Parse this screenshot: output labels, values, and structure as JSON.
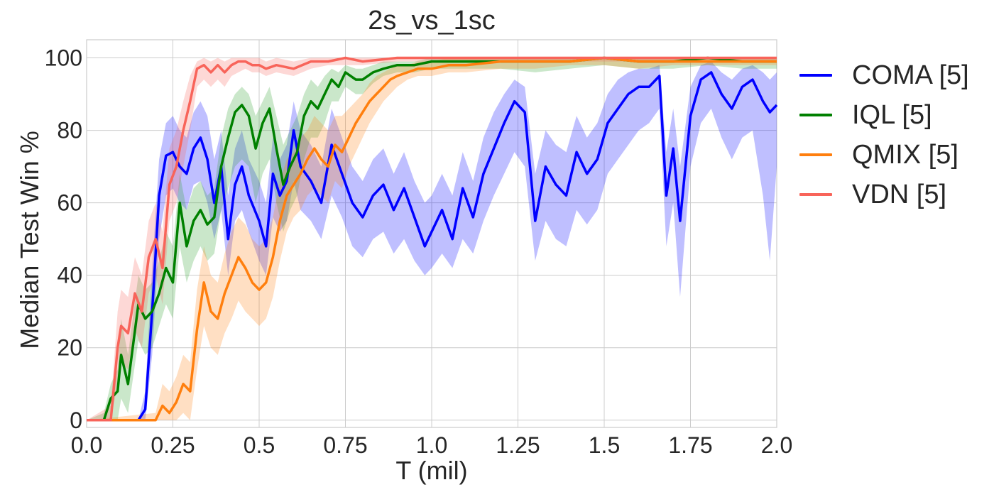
{
  "chart_data": {
    "type": "line",
    "title": "2s_vs_1sc",
    "xlabel": "T (mil)",
    "ylabel": "Median Test Win %",
    "xlim": [
      0.0,
      2.0
    ],
    "ylim": [
      -2,
      105
    ],
    "xticks": [
      "0.0",
      "0.25",
      "0.5",
      "0.75",
      "1.0",
      "1.25",
      "1.5",
      "1.75",
      "2.0"
    ],
    "xtick_values": [
      0.0,
      0.25,
      0.5,
      0.75,
      1.0,
      1.25,
      1.5,
      1.75,
      2.0
    ],
    "yticks": [
      "0",
      "20",
      "40",
      "60",
      "80",
      "100"
    ],
    "ytick_values": [
      0,
      20,
      40,
      60,
      80,
      100
    ],
    "grid": true,
    "legend_position": "outside-right",
    "series": [
      {
        "name": "COMA [5]",
        "color": "#0000ff",
        "band_color": "#0000ff",
        "x": [
          0.0,
          0.15,
          0.17,
          0.19,
          0.21,
          0.23,
          0.25,
          0.27,
          0.29,
          0.31,
          0.33,
          0.35,
          0.37,
          0.39,
          0.41,
          0.43,
          0.45,
          0.47,
          0.5,
          0.52,
          0.54,
          0.56,
          0.58,
          0.6,
          0.62,
          0.65,
          0.68,
          0.71,
          0.74,
          0.77,
          0.8,
          0.83,
          0.86,
          0.89,
          0.92,
          0.95,
          0.98,
          1.0,
          1.03,
          1.06,
          1.09,
          1.12,
          1.15,
          1.18,
          1.21,
          1.24,
          1.27,
          1.3,
          1.33,
          1.36,
          1.39,
          1.42,
          1.45,
          1.48,
          1.51,
          1.54,
          1.57,
          1.6,
          1.63,
          1.66,
          1.68,
          1.7,
          1.72,
          1.75,
          1.78,
          1.81,
          1.84,
          1.87,
          1.9,
          1.93,
          1.96,
          1.98,
          2.0
        ],
        "y": [
          0,
          0,
          3,
          30,
          62,
          73,
          74,
          70,
          68,
          75,
          78,
          72,
          60,
          70,
          50,
          65,
          70,
          62,
          55,
          48,
          68,
          62,
          66,
          80,
          70,
          66,
          60,
          76,
          68,
          60,
          56,
          62,
          65,
          58,
          64,
          56,
          48,
          52,
          58,
          50,
          64,
          56,
          68,
          75,
          82,
          88,
          85,
          55,
          70,
          65,
          62,
          74,
          68,
          72,
          82,
          86,
          90,
          92,
          92,
          95,
          62,
          75,
          55,
          84,
          94,
          96,
          90,
          86,
          92,
          94,
          88,
          85,
          87
        ],
        "lower": [
          0,
          0,
          0,
          18,
          50,
          62,
          64,
          60,
          58,
          65,
          66,
          60,
          50,
          58,
          40,
          55,
          58,
          52,
          44,
          40,
          56,
          52,
          55,
          66,
          58,
          55,
          50,
          62,
          56,
          48,
          45,
          50,
          52,
          46,
          50,
          44,
          40,
          42,
          46,
          42,
          50,
          46,
          55,
          62,
          68,
          74,
          70,
          44,
          55,
          50,
          48,
          58,
          54,
          58,
          68,
          72,
          76,
          80,
          82,
          86,
          48,
          60,
          34,
          70,
          82,
          86,
          78,
          72,
          78,
          80,
          62,
          44,
          70
        ],
        "upper": [
          0,
          0,
          8,
          42,
          72,
          82,
          84,
          80,
          78,
          85,
          88,
          84,
          72,
          80,
          62,
          75,
          80,
          72,
          66,
          60,
          78,
          72,
          76,
          88,
          80,
          76,
          70,
          86,
          78,
          70,
          66,
          72,
          75,
          68,
          74,
          66,
          60,
          62,
          68,
          62,
          74,
          66,
          78,
          85,
          90,
          94,
          92,
          68,
          80,
          76,
          74,
          84,
          78,
          82,
          90,
          94,
          96,
          97,
          97,
          98,
          74,
          86,
          70,
          92,
          98,
          99,
          96,
          94,
          97,
          98,
          96,
          94,
          96
        ]
      },
      {
        "name": "IQL [5]",
        "color": "#008000",
        "band_color": "#2ca02c",
        "x": [
          0.0,
          0.05,
          0.07,
          0.09,
          0.1,
          0.12,
          0.15,
          0.17,
          0.19,
          0.21,
          0.23,
          0.25,
          0.27,
          0.29,
          0.31,
          0.33,
          0.35,
          0.37,
          0.39,
          0.41,
          0.43,
          0.45,
          0.47,
          0.49,
          0.51,
          0.53,
          0.55,
          0.57,
          0.59,
          0.61,
          0.63,
          0.65,
          0.67,
          0.69,
          0.71,
          0.73,
          0.75,
          0.78,
          0.8,
          0.83,
          0.86,
          0.9,
          0.95,
          1.0,
          1.05,
          1.1,
          1.2,
          1.3,
          1.4,
          1.5,
          1.6,
          1.7,
          1.8,
          1.9,
          2.0
        ],
        "y": [
          0,
          0,
          6,
          8,
          18,
          10,
          32,
          28,
          30,
          35,
          42,
          38,
          60,
          48,
          55,
          58,
          54,
          56,
          70,
          78,
          85,
          87,
          84,
          75,
          82,
          86,
          75,
          65,
          70,
          74,
          84,
          88,
          86,
          90,
          94,
          92,
          96,
          94,
          94,
          96,
          97,
          98,
          98,
          99,
          99,
          99,
          99,
          99,
          99,
          100,
          99,
          99,
          100,
          99,
          99
        ],
        "lower": [
          0,
          0,
          0,
          0,
          6,
          2,
          22,
          18,
          20,
          26,
          32,
          28,
          48,
          38,
          44,
          48,
          44,
          46,
          58,
          64,
          70,
          72,
          70,
          60,
          68,
          72,
          60,
          52,
          58,
          62,
          72,
          78,
          78,
          82,
          88,
          88,
          92,
          90,
          90,
          93,
          95,
          96,
          96,
          97,
          97,
          97,
          97,
          96,
          97,
          98,
          97,
          97,
          98,
          97,
          97
        ],
        "upper": [
          0,
          2,
          10,
          14,
          28,
          18,
          40,
          36,
          38,
          44,
          52,
          48,
          68,
          58,
          64,
          66,
          62,
          64,
          78,
          86,
          90,
          92,
          90,
          84,
          88,
          92,
          84,
          76,
          80,
          84,
          90,
          94,
          92,
          95,
          97,
          96,
          98,
          97,
          97,
          98,
          99,
          99,
          99,
          100,
          100,
          100,
          100,
          100,
          100,
          100,
          100,
          100,
          100,
          100,
          100
        ]
      },
      {
        "name": "QMIX [5]",
        "color": "#ff7f0e",
        "band_color": "#ff7f0e",
        "x": [
          0.0,
          0.2,
          0.22,
          0.24,
          0.26,
          0.28,
          0.3,
          0.32,
          0.34,
          0.36,
          0.38,
          0.4,
          0.42,
          0.44,
          0.46,
          0.48,
          0.5,
          0.52,
          0.54,
          0.56,
          0.58,
          0.6,
          0.62,
          0.64,
          0.66,
          0.68,
          0.7,
          0.72,
          0.74,
          0.76,
          0.78,
          0.8,
          0.82,
          0.84,
          0.86,
          0.88,
          0.9,
          0.93,
          0.96,
          1.0,
          1.05,
          1.1,
          1.2,
          1.3,
          1.4,
          1.5,
          1.6,
          1.7,
          1.8,
          1.9,
          2.0
        ],
        "y": [
          0,
          0,
          4,
          2,
          5,
          10,
          8,
          25,
          38,
          30,
          28,
          35,
          40,
          45,
          42,
          38,
          36,
          38,
          45,
          55,
          62,
          65,
          68,
          72,
          75,
          72,
          70,
          76,
          74,
          78,
          82,
          85,
          88,
          90,
          92,
          94,
          95,
          96,
          97,
          97,
          98,
          98,
          99,
          99,
          99,
          100,
          99,
          99,
          99,
          99,
          99
        ],
        "lower": [
          0,
          0,
          0,
          0,
          0,
          2,
          0,
          14,
          26,
          20,
          18,
          24,
          28,
          33,
          30,
          28,
          26,
          28,
          34,
          44,
          52,
          56,
          58,
          62,
          64,
          62,
          60,
          66,
          64,
          70,
          74,
          78,
          82,
          85,
          88,
          90,
          92,
          94,
          95,
          95,
          96,
          96,
          97,
          97,
          98,
          98,
          97,
          98,
          98,
          98,
          98
        ],
        "upper": [
          0,
          2,
          10,
          8,
          12,
          18,
          16,
          36,
          48,
          40,
          38,
          46,
          52,
          56,
          54,
          50,
          48,
          50,
          56,
          66,
          72,
          74,
          78,
          80,
          84,
          82,
          80,
          84,
          84,
          86,
          88,
          90,
          93,
          95,
          96,
          97,
          98,
          98,
          99,
          99,
          100,
          100,
          100,
          100,
          100,
          100,
          100,
          100,
          100,
          100,
          100
        ]
      },
      {
        "name": "VDN [5]",
        "color": "#f8645a",
        "band_color": "#f8645a",
        "x": [
          0.0,
          0.07,
          0.09,
          0.1,
          0.12,
          0.14,
          0.16,
          0.18,
          0.2,
          0.22,
          0.24,
          0.26,
          0.28,
          0.3,
          0.32,
          0.34,
          0.36,
          0.38,
          0.4,
          0.42,
          0.44,
          0.46,
          0.48,
          0.5,
          0.52,
          0.55,
          0.6,
          0.65,
          0.7,
          0.75,
          0.8,
          0.9,
          1.0,
          1.1,
          1.2,
          1.3,
          1.4,
          1.5,
          1.6,
          1.7,
          1.8,
          1.9,
          2.0
        ],
        "y": [
          0,
          0,
          20,
          26,
          24,
          35,
          30,
          45,
          50,
          42,
          65,
          70,
          80,
          88,
          97,
          98,
          96,
          98,
          96,
          98,
          99,
          99,
          98,
          98,
          97,
          98,
          97,
          99,
          99,
          100,
          99,
          100,
          100,
          100,
          100,
          100,
          100,
          100,
          100,
          100,
          100,
          100,
          100
        ],
        "lower": [
          0,
          0,
          10,
          16,
          14,
          25,
          20,
          35,
          40,
          32,
          55,
          60,
          70,
          80,
          92,
          94,
          92,
          94,
          92,
          95,
          96,
          97,
          96,
          96,
          95,
          96,
          95,
          97,
          98,
          98,
          98,
          99,
          99,
          99,
          99,
          99,
          99,
          99,
          99,
          99,
          99,
          99,
          99
        ],
        "upper": [
          0,
          4,
          30,
          36,
          34,
          45,
          40,
          55,
          60,
          52,
          75,
          80,
          88,
          95,
          99,
          100,
          99,
          100,
          99,
          100,
          100,
          100,
          100,
          100,
          99,
          100,
          99,
          100,
          100,
          100,
          100,
          100,
          100,
          100,
          100,
          100,
          100,
          100,
          100,
          100,
          100,
          100,
          100
        ]
      }
    ]
  }
}
